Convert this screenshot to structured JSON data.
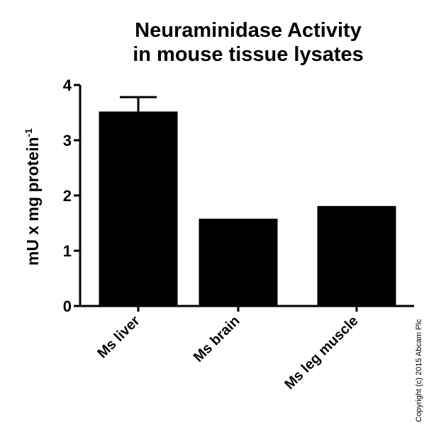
{
  "chart_data": {
    "type": "bar",
    "title_line1": "Neuraminidase Activity",
    "title_line2": "in mouse tissue lysates",
    "ylabel_main": "mU x mg protein",
    "ylabel_sup": "-1",
    "categories": [
      "Ms liver",
      "Ms brain",
      "Ms leg muscle"
    ],
    "values": [
      3.52,
      1.58,
      1.81
    ],
    "error_upper": [
      0.26,
      0,
      0
    ],
    "ylim": [
      0,
      4
    ],
    "yticks": [
      0,
      1,
      2,
      3,
      4
    ],
    "ytick_labels": [
      "0",
      "1",
      "2",
      "3",
      "4"
    ],
    "bar_color": "#000000",
    "grid": false
  },
  "copyright": "Copyright (c) 2015 Abcam Plc"
}
